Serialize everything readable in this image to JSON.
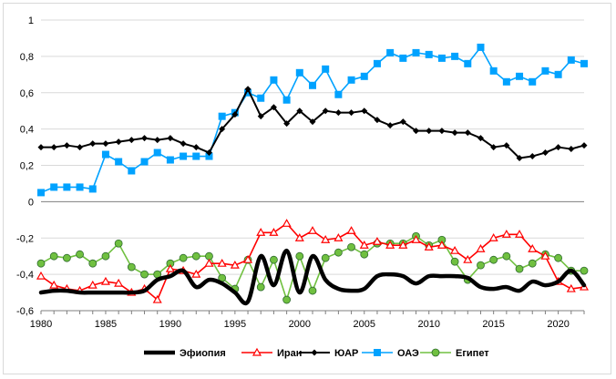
{
  "chart_data": {
    "type": "line",
    "title": "",
    "xlabel": "",
    "ylabel": "",
    "xlim": [
      1980,
      2022
    ],
    "ylim": [
      -0.6,
      1.0
    ],
    "x_ticks": [
      1980,
      1985,
      1990,
      1995,
      2000,
      2005,
      2010,
      2015,
      2020
    ],
    "x_tick_labels": [
      "1980",
      "1985",
      "1990",
      "1995",
      "2000",
      "2005",
      "2010",
      "2015",
      "2020"
    ],
    "y_ticks": [
      -0.6,
      -0.4,
      -0.2,
      0,
      0.2,
      0.4,
      0.6,
      0.8,
      1
    ],
    "y_tick_labels": [
      "-0,6",
      "-0,4",
      "-0,2",
      "0",
      "0,2",
      "0,4",
      "0,6",
      "0,8",
      "1"
    ],
    "grid": "horizontal",
    "legend_position": "bottom",
    "x": [
      1980,
      1981,
      1982,
      1983,
      1984,
      1985,
      1986,
      1987,
      1988,
      1989,
      1990,
      1991,
      1992,
      1993,
      1994,
      1995,
      1996,
      1997,
      1998,
      1999,
      2000,
      2001,
      2002,
      2003,
      2004,
      2005,
      2006,
      2007,
      2008,
      2009,
      2010,
      2011,
      2012,
      2013,
      2014,
      2015,
      2016,
      2017,
      2018,
      2019,
      2020,
      2021,
      2022
    ],
    "series": [
      {
        "name": "Эфиопия",
        "color": "#000000",
        "marker": "none",
        "smooth": true,
        "values": [
          -0.5,
          -0.49,
          -0.49,
          -0.5,
          -0.5,
          -0.5,
          -0.5,
          -0.5,
          -0.49,
          -0.43,
          -0.41,
          -0.38,
          -0.47,
          -0.43,
          -0.45,
          -0.5,
          -0.55,
          -0.3,
          -0.46,
          -0.27,
          -0.5,
          -0.3,
          -0.43,
          -0.48,
          -0.49,
          -0.48,
          -0.41,
          -0.4,
          -0.41,
          -0.45,
          -0.41,
          -0.41,
          -0.41,
          -0.42,
          -0.47,
          -0.48,
          -0.47,
          -0.49,
          -0.44,
          -0.46,
          -0.44,
          -0.38,
          -0.46
        ]
      },
      {
        "name": "Иран",
        "color": "#ff0000",
        "marker": "triangle",
        "values": [
          -0.41,
          -0.46,
          -0.48,
          -0.49,
          -0.46,
          -0.44,
          -0.45,
          -0.5,
          -0.48,
          -0.54,
          -0.37,
          -0.38,
          -0.4,
          -0.34,
          -0.34,
          -0.35,
          -0.32,
          -0.17,
          -0.17,
          -0.12,
          -0.2,
          -0.16,
          -0.21,
          -0.2,
          -0.16,
          -0.24,
          -0.22,
          -0.24,
          -0.24,
          -0.21,
          -0.25,
          -0.24,
          -0.27,
          -0.32,
          -0.26,
          -0.2,
          -0.18,
          -0.18,
          -0.26,
          -0.3,
          -0.44,
          -0.48,
          -0.47
        ]
      },
      {
        "name": "ЮАР",
        "color": "#000000",
        "marker": "diamond",
        "values": [
          0.3,
          0.3,
          0.31,
          0.3,
          0.32,
          0.32,
          0.33,
          0.34,
          0.35,
          0.34,
          0.35,
          0.32,
          0.3,
          0.27,
          0.4,
          0.48,
          0.62,
          0.47,
          0.52,
          0.43,
          0.5,
          0.44,
          0.5,
          0.49,
          0.49,
          0.5,
          0.45,
          0.42,
          0.44,
          0.39,
          0.39,
          0.39,
          0.38,
          0.38,
          0.35,
          0.3,
          0.31,
          0.24,
          0.25,
          0.27,
          0.3,
          0.29,
          0.31
        ]
      },
      {
        "name": "ОАЭ",
        "color": "#00a2ff",
        "marker": "square",
        "values": [
          0.05,
          0.08,
          0.08,
          0.08,
          0.07,
          0.26,
          0.22,
          0.17,
          0.22,
          0.27,
          0.23,
          0.25,
          0.25,
          0.25,
          0.47,
          0.49,
          0.6,
          0.57,
          0.67,
          0.56,
          0.71,
          0.64,
          0.73,
          0.59,
          0.67,
          0.69,
          0.76,
          0.82,
          0.79,
          0.82,
          0.81,
          0.79,
          0.8,
          0.76,
          0.85,
          0.72,
          0.66,
          0.69,
          0.66,
          0.72,
          0.7,
          0.78,
          0.76
        ]
      },
      {
        "name": "Египет",
        "color": "#70c040",
        "marker": "circle",
        "values": [
          -0.34,
          -0.3,
          -0.31,
          -0.29,
          -0.34,
          -0.3,
          -0.23,
          -0.36,
          -0.4,
          -0.4,
          -0.34,
          -0.31,
          -0.3,
          -0.3,
          -0.42,
          -0.48,
          -0.32,
          -0.47,
          -0.32,
          -0.54,
          -0.3,
          -0.49,
          -0.31,
          -0.28,
          -0.25,
          -0.29,
          -0.23,
          -0.23,
          -0.23,
          -0.19,
          -0.24,
          -0.21,
          -0.33,
          -0.43,
          -0.35,
          -0.32,
          -0.3,
          -0.37,
          -0.34,
          -0.29,
          -0.31,
          -0.38,
          -0.38
        ]
      }
    ]
  }
}
